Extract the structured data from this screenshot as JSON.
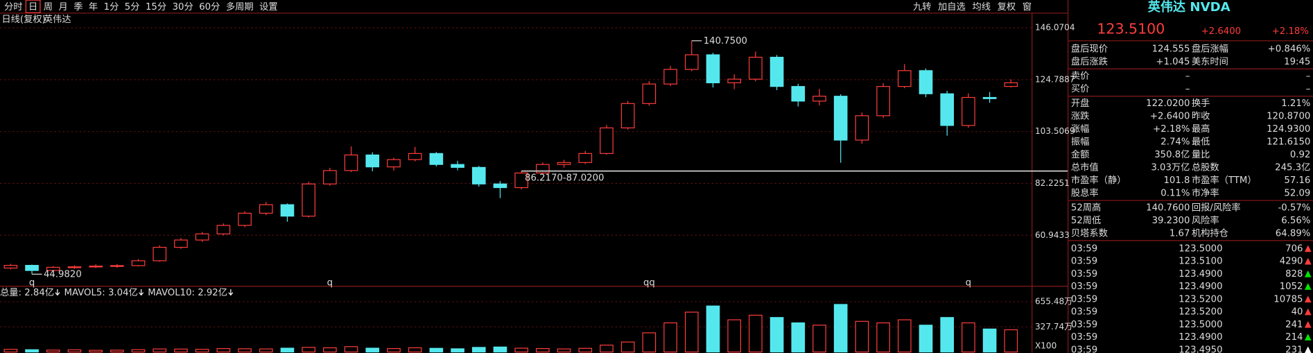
{
  "toolbar": {
    "left": [
      "分时",
      "日",
      "周",
      "月",
      "季",
      "年",
      "1分",
      "5分",
      "15分",
      "30分",
      "60分",
      "多周期",
      "设置"
    ],
    "right": [
      "九转",
      "加自选",
      "均线",
      "复权",
      "窗"
    ]
  },
  "chart_header": [
    "日线(复权)",
    "英伟达"
  ],
  "chart_data": [
    {
      "type": "candlestick",
      "ylim": [
        43.3,
        147.1
      ],
      "yticks": [
        146.0704,
        124.7887,
        103.5069,
        82.2251,
        60.9433
      ],
      "grid": true,
      "up_color": "#ff3c3c",
      "down_color": "#54e8ee",
      "categories": [
        null,
        "q",
        null,
        null,
        null,
        null,
        null,
        null,
        null,
        null,
        null,
        null,
        null,
        null,
        null,
        "q",
        null,
        null,
        null,
        null,
        null,
        null,
        null,
        null,
        null,
        null,
        null,
        null,
        null,
        null,
        "qq",
        null,
        null,
        null,
        null,
        null,
        null,
        null,
        null,
        null,
        null,
        null,
        null,
        null,
        null,
        "q",
        null,
        null
      ],
      "candles": [
        [
          47.5,
          49.2,
          47.0,
          48.6
        ],
        [
          48.6,
          48.9,
          44.982,
          46.5
        ],
        [
          46.5,
          48.3,
          46.0,
          47.8
        ],
        [
          47.8,
          48.6,
          47.2,
          48.0
        ],
        [
          48.0,
          49.0,
          47.5,
          48.3
        ],
        [
          48.3,
          49.1,
          47.6,
          48.5
        ],
        [
          48.5,
          51.2,
          48.2,
          50.5
        ],
        [
          50.5,
          56.8,
          50.1,
          56.0
        ],
        [
          56.0,
          59.8,
          55.4,
          59.0
        ],
        [
          59.0,
          62.3,
          58.2,
          61.5
        ],
        [
          61.5,
          65.8,
          60.9,
          65.0
        ],
        [
          65.0,
          70.8,
          64.3,
          70.0
        ],
        [
          70.0,
          74.6,
          69.2,
          73.5
        ],
        [
          73.5,
          74.0,
          66.5,
          68.8
        ],
        [
          68.8,
          82.9,
          68.2,
          82.0
        ],
        [
          82.0,
          88.6,
          81.3,
          87.5
        ],
        [
          87.5,
          97.4,
          86.9,
          93.9
        ],
        [
          93.9,
          95.0,
          87.2,
          89.0
        ],
        [
          89.0,
          92.8,
          87.5,
          92.0
        ],
        [
          92.0,
          97.2,
          91.3,
          94.5
        ],
        [
          94.5,
          95.1,
          89.2,
          90.0
        ],
        [
          90.0,
          91.5,
          87.6,
          88.8
        ],
        [
          88.8,
          89.4,
          80.9,
          82.0
        ],
        [
          82.0,
          83.2,
          76.2,
          80.5
        ],
        [
          80.5,
          87.4,
          79.8,
          86.5
        ],
        [
          86.5,
          90.8,
          85.9,
          90.0
        ],
        [
          90.0,
          91.9,
          88.7,
          90.8
        ],
        [
          90.8,
          95.6,
          90.2,
          94.5
        ],
        [
          94.5,
          106.2,
          94.0,
          105.0
        ],
        [
          105.0,
          116.1,
          104.3,
          115.0
        ],
        [
          115.0,
          124.2,
          114.1,
          123.0
        ],
        [
          123.0,
          130.4,
          122.2,
          129.0
        ],
        [
          129.0,
          140.75,
          128.3,
          135.0
        ],
        [
          135.0,
          135.8,
          121.6,
          123.5
        ],
        [
          123.5,
          127.0,
          120.9,
          125.0
        ],
        [
          125.0,
          136.3,
          124.1,
          134.0
        ],
        [
          134.0,
          134.9,
          120.5,
          122.0
        ],
        [
          122.0,
          123.1,
          113.8,
          116.0
        ],
        [
          116.0,
          121.0,
          114.2,
          118.0
        ],
        [
          118.0,
          118.8,
          90.7,
          100.0
        ],
        [
          100.0,
          111.3,
          98.5,
          110.0
        ],
        [
          110.0,
          123.4,
          109.1,
          122.0
        ],
        [
          122.0,
          131.2,
          121.3,
          128.5
        ],
        [
          128.5,
          129.4,
          117.6,
          119.0
        ],
        [
          119.0,
          120.2,
          101.8,
          106.0
        ],
        [
          106.0,
          119.2,
          105.1,
          117.5
        ],
        [
          117.5,
          119.7,
          115.3,
          117.0
        ],
        [
          122.02,
          124.93,
          121.615,
          123.51
        ]
      ],
      "annotations": [
        {
          "label": "140.7500",
          "value": 140.75
        },
        {
          "label": "44.9820",
          "value": 44.982
        },
        {
          "label": "86.2170-87.0200",
          "value": 87.3
        }
      ]
    },
    {
      "type": "bar",
      "ylim": [
        0,
        721
      ],
      "yticks": [
        {
          "value": 655.48,
          "label": "655.48万"
        },
        {
          "value": 327.74,
          "label": "327.74万"
        }
      ],
      "legend": [
        {
          "text": "总量: 2.84亿",
          "color": "#ff5050"
        },
        {
          "text": "MAVOL5: 3.04亿",
          "color": "#ffe14a"
        },
        {
          "text": "MAVOL10: 2.92亿",
          "color": "#ffffff"
        }
      ],
      "unit_label": "X100",
      "values": [
        35,
        30,
        25,
        28,
        22,
        24,
        30,
        40,
        38,
        35,
        45,
        42,
        40,
        50,
        60,
        55,
        70,
        50,
        45,
        55,
        48,
        42,
        60,
        65,
        50,
        45,
        40,
        48,
        90,
        130,
        250,
        380,
        520,
        600,
        420,
        480,
        450,
        380,
        350,
        620,
        400,
        380,
        420,
        350,
        450,
        380,
        300,
        290
      ]
    }
  ],
  "quote": {
    "name": "英伟达 NVDA",
    "price": "123.5100",
    "change": "+2.6400",
    "change_pct": "+2.18%"
  },
  "stats": [
    [
      {
        "l": "盘后现价",
        "v": "124.555",
        "c": "#ff3c3c",
        "l2": "盘后涨幅",
        "v2": "+0.846%",
        "c2": "#ff3c3c"
      },
      {
        "l": "盘后涨跌",
        "v": "+1.045",
        "c": "#ff3c3c",
        "l2": "美东时间",
        "v2": "19:45",
        "c2": "#ffffff"
      }
    ],
    [
      {
        "l": "卖价",
        "v": "–",
        "c": "#ffffff",
        "l2": "",
        "v2": "–",
        "c2": "#ffffff"
      },
      {
        "l": "买价",
        "v": "–",
        "c": "#ffffff",
        "l2": "",
        "v2": "–",
        "c2": "#ffffff"
      }
    ],
    [
      {
        "l": "开盘",
        "v": "122.0200",
        "c": "#ff3c3c",
        "l2": "换手",
        "v2": "1.21%",
        "c2": "#54e8ee"
      },
      {
        "l": "涨跌",
        "v": "+2.6400",
        "c": "#ff3c3c",
        "l2": "昨收",
        "v2": "120.8700",
        "c2": "#ffffff"
      },
      {
        "l": "涨幅",
        "v": "+2.18%",
        "c": "#ff3c3c",
        "l2": "最高",
        "v2": "124.9300",
        "c2": "#ff3c3c"
      },
      {
        "l": "振幅",
        "v": "2.74%",
        "c": "#ffffff",
        "l2": "最低",
        "v2": "121.6150",
        "c2": "#ff3c3c"
      },
      {
        "l": "金额",
        "v": "350.8亿",
        "c": "#54e8ee",
        "l2": "量比",
        "v2": "0.92",
        "c2": "#00e600"
      },
      {
        "l": "总市值",
        "v": "3.03万亿",
        "c": "#54e8ee",
        "l2": "总股数",
        "v2": "245.3亿",
        "c2": "#54e8ee"
      },
      {
        "l": "市盈率（静）",
        "v": "101.8",
        "c": "#ffffff",
        "l2": "市盈率（TTM）",
        "v2": "57.16",
        "c2": "#ffffff"
      },
      {
        "l": "股息率",
        "v": "0.11%",
        "c": "#54e8ee",
        "l2": "市净率",
        "v2": "52.09",
        "c2": "#ffffff"
      }
    ],
    [
      {
        "l": "52周高",
        "v": "140.7600",
        "c": "#ff3c3c",
        "l2": "回报/风险率",
        "v2": "-0.57%",
        "c2": "#00e600"
      },
      {
        "l": "52周低",
        "v": "39.2300",
        "c": "#00e600",
        "l2": "风险率",
        "v2": "6.56%",
        "c2": "#ff3c3c"
      },
      {
        "l": "贝塔系数",
        "v": "1.67",
        "c": "#ffffff",
        "l2": "机构持仓",
        "v2": "64.89%",
        "c2": "#54e8ee"
      }
    ]
  ],
  "trades": [
    [
      "03:59",
      "123.5000",
      "706",
      "#ff3c3c"
    ],
    [
      "03:59",
      "123.5100",
      "4290",
      "#ff3c3c"
    ],
    [
      "03:59",
      "123.4900",
      "828",
      "#00e600"
    ],
    [
      "03:59",
      "123.4900",
      "1052",
      "#00e600"
    ],
    [
      "03:59",
      "123.5200",
      "10785",
      "#ff3c3c"
    ],
    [
      "03:59",
      "123.5200",
      "40",
      "#ff3c3c"
    ],
    [
      "03:59",
      "123.5000",
      "241",
      "#ff3c3c"
    ],
    [
      "03:59",
      "123.4900",
      "214",
      "#00e600"
    ],
    [
      "03:59",
      "123.4950",
      "231",
      "#ffffff"
    ]
  ]
}
